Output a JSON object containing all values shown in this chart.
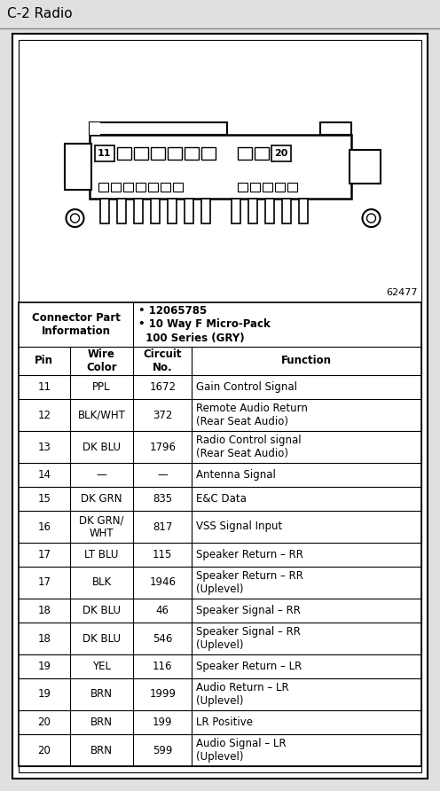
{
  "title": "C-2 Radio",
  "diagram_label": "62477",
  "connector_info_left": "Connector Part\nInformation",
  "connector_info_right": "• 12065785\n• 10 Way F Micro-Pack\n  100 Series (GRY)",
  "col_headers": [
    "Pin",
    "Wire\nColor",
    "Circuit\nNo.",
    "Function"
  ],
  "rows": [
    [
      "11",
      "PPL",
      "1672",
      "Gain Control Signal"
    ],
    [
      "12",
      "BLK/WHT",
      "372",
      "Remote Audio Return\n(Rear Seat Audio)"
    ],
    [
      "13",
      "DK BLU",
      "1796",
      "Radio Control signal\n(Rear Seat Audio)"
    ],
    [
      "14",
      "—",
      "—",
      "Antenna Signal"
    ],
    [
      "15",
      "DK GRN",
      "835",
      "E&C Data"
    ],
    [
      "16",
      "DK GRN/\nWHT",
      "817",
      "VSS Signal Input"
    ],
    [
      "17",
      "LT BLU",
      "115",
      "Speaker Return – RR"
    ],
    [
      "17",
      "BLK",
      "1946",
      "Speaker Return – RR\n(Uplevel)"
    ],
    [
      "18",
      "DK BLU",
      "46",
      "Speaker Signal – RR"
    ],
    [
      "18",
      "DK BLU",
      "546",
      "Speaker Signal – RR\n(Uplevel)"
    ],
    [
      "19",
      "YEL",
      "116",
      "Speaker Return – LR"
    ],
    [
      "19",
      "BRN",
      "1999",
      "Audio Return – LR\n(Uplevel)"
    ],
    [
      "20",
      "BRN",
      "199",
      "LR Positive"
    ],
    [
      "20",
      "BRN",
      "599",
      "Audio Signal – LR\n(Uplevel)"
    ]
  ],
  "outer_bg": "#e0e0e0",
  "figsize": [
    4.96,
    8.92
  ],
  "dpi": 100
}
